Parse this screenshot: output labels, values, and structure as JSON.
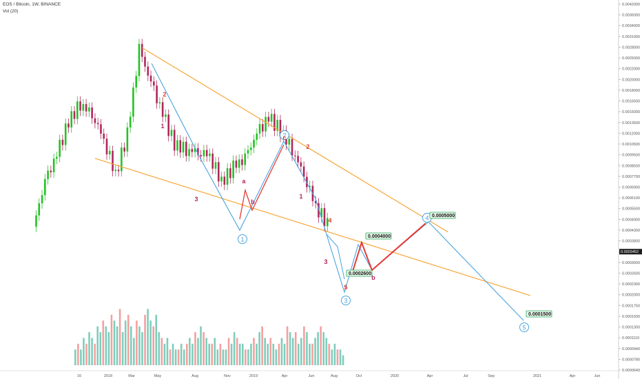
{
  "header": {
    "title": "EOS / Bitcoin, 1W, BINANCE",
    "volume_label": "Vol (20)"
  },
  "colors": {
    "up": "#26a69a",
    "up_bright": "#22c322",
    "down": "#ef5350",
    "down_dark": "#b0265c",
    "vol_up": "#7fcdbb",
    "vol_down": "#f4a0a0",
    "trendline": "#f7a638",
    "wave_blue": "#4aa3df",
    "wave_red": "#e53935",
    "label_bg": "#e8f7e8",
    "label_border": "#26a65b",
    "current_price_bg": "#1e1e1e"
  },
  "chart_data": {
    "type": "candlestick",
    "symbol": "EOS/BTC",
    "interval": "1W",
    "exchange": "BINANCE",
    "y_axis": {
      "scale": "log",
      "tick_labels": [
        "0.0042000",
        "0.0036000",
        "0.0034000",
        "0.0031000",
        "0.0028000",
        "0.0025000",
        "0.0022000",
        "0.0020000",
        "0.0018000",
        "0.0016500",
        "0.0015000",
        "0.0013500",
        "0.0012000",
        "0.0010500",
        "0.0009500",
        "0.0008500",
        "0.0007700",
        "0.0006900",
        "0.0006100",
        "0.0005500",
        "0.0004900",
        "0.0004300",
        "0.0003800",
        "0.0003452",
        "0.0003000",
        "0.0002600",
        "0.0002300",
        "0.0002000",
        "0.0001750",
        "0.0001500",
        "0.0001300",
        "0.0001110",
        "0.0000940",
        "0.0000780",
        "0.0000640"
      ],
      "current_price": "0.0003452"
    },
    "x_axis": {
      "tick_labels": [
        "16",
        "2018",
        "Mar",
        "May",
        "Aug",
        "Nov",
        "2019",
        "Apr",
        "Jun",
        "Aug",
        "Oct",
        "2020",
        "Apr",
        "Jul",
        "Sep",
        "2021",
        "Apr",
        "Jun"
      ]
    },
    "price_series": [
      {
        "date": "2017-07",
        "close": 0.00033
      },
      {
        "date": "2017-08",
        "close": 0.00055
      },
      {
        "date": "2017-09",
        "close": 0.00075
      },
      {
        "date": "2017-10",
        "close": 0.0011
      },
      {
        "date": "2017-11",
        "close": 0.00135
      },
      {
        "date": "2017-12",
        "close": 0.0012
      },
      {
        "date": "2018-01",
        "close": 0.0009
      },
      {
        "date": "2018-02",
        "close": 0.0006
      },
      {
        "date": "2018-03",
        "close": 0.00095
      },
      {
        "date": "2018-04",
        "close": 0.0025
      },
      {
        "date": "2018-05",
        "close": 0.0017
      },
      {
        "date": "2018-06",
        "close": 0.0012
      },
      {
        "date": "2018-07",
        "close": 0.00085
      },
      {
        "date": "2018-08",
        "close": 0.0008
      },
      {
        "date": "2018-09",
        "close": 0.00078
      },
      {
        "date": "2018-10",
        "close": 0.00075
      },
      {
        "date": "2018-11",
        "close": 0.00055
      },
      {
        "date": "2018-12",
        "close": 0.00065
      },
      {
        "date": "2019-01",
        "close": 0.00072
      },
      {
        "date": "2019-02",
        "close": 0.00095
      },
      {
        "date": "2019-03",
        "close": 0.00115
      },
      {
        "date": "2019-04",
        "close": 0.001
      },
      {
        "date": "2019-05",
        "close": 0.0008
      },
      {
        "date": "2019-06",
        "close": 0.0006
      },
      {
        "date": "2019-07",
        "close": 0.00042
      },
      {
        "date": "2019-08",
        "close": 0.00034
      }
    ],
    "volume_series": [
      {
        "date": "2017-07",
        "volume": 2,
        "dir": "up"
      },
      {
        "date": "2017-08",
        "volume": 3,
        "dir": "up"
      },
      {
        "date": "2017-09",
        "volume": 4,
        "dir": "up"
      },
      {
        "date": "2017-10",
        "volume": 5,
        "dir": "up"
      },
      {
        "date": "2017-11",
        "volume": 6,
        "dir": "down"
      },
      {
        "date": "2017-12",
        "volume": 7,
        "dir": "up"
      },
      {
        "date": "2018-01",
        "volume": 5,
        "dir": "down"
      },
      {
        "date": "2018-02",
        "volume": 4,
        "dir": "down"
      },
      {
        "date": "2018-03",
        "volume": 6,
        "dir": "up"
      },
      {
        "date": "2018-04",
        "volume": 9,
        "dir": "up"
      },
      {
        "date": "2018-05",
        "volume": 8,
        "dir": "down"
      },
      {
        "date": "2018-06",
        "volume": 6,
        "dir": "down"
      },
      {
        "date": "2018-07",
        "volume": 4,
        "dir": "down"
      },
      {
        "date": "2018-08",
        "volume": 3,
        "dir": "up"
      },
      {
        "date": "2018-09",
        "volume": 3,
        "dir": "down"
      },
      {
        "date": "2018-10",
        "volume": 2,
        "dir": "down"
      },
      {
        "date": "2018-11",
        "volume": 5,
        "dir": "down"
      },
      {
        "date": "2018-12",
        "volume": 4,
        "dir": "up"
      },
      {
        "date": "2019-01",
        "volume": 3,
        "dir": "up"
      },
      {
        "date": "2019-02",
        "volume": 5,
        "dir": "up"
      },
      {
        "date": "2019-03",
        "volume": 6,
        "dir": "up"
      },
      {
        "date": "2019-04",
        "volume": 5,
        "dir": "down"
      },
      {
        "date": "2019-05",
        "volume": 5,
        "dir": "up"
      },
      {
        "date": "2019-06",
        "volume": 4,
        "dir": "down"
      },
      {
        "date": "2019-07",
        "volume": 3,
        "dir": "down"
      },
      {
        "date": "2019-08",
        "volume": 2,
        "dir": "down"
      }
    ],
    "trendlines": [
      {
        "name": "upper-resistance",
        "from": {
          "date": "2018-04",
          "price": 0.00255
        },
        "to": {
          "date": "2020-06",
          "price": 0.00031
        }
      },
      {
        "name": "lower-support",
        "from": {
          "date": "2017-12",
          "price": 0.00072
        },
        "to": {
          "date": "2021-01",
          "price": 0.00015
        }
      }
    ],
    "annotations": {
      "price_labels": [
        "0.0004000",
        "0.0002600",
        "0.0005000",
        "0.0001500"
      ],
      "wave_circles": [
        "1",
        "2",
        "3",
        "4",
        "5"
      ],
      "wave_small": [
        "2",
        "1",
        "3",
        "a",
        "b",
        "c",
        "2",
        "1",
        "4",
        "3",
        "5",
        "b"
      ]
    }
  }
}
